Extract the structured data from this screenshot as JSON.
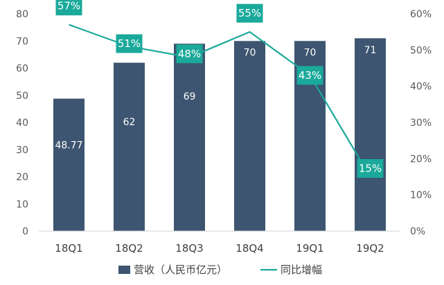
{
  "chart_data": {
    "type": "bar",
    "categories": [
      "18Q1",
      "18Q2",
      "18Q3",
      "18Q4",
      "19Q1",
      "19Q2"
    ],
    "series": [
      {
        "name": "营收（人民币亿元）",
        "kind": "bar",
        "axis": "left",
        "color": "#3d5570",
        "values": [
          48.77,
          62,
          69,
          70,
          70,
          71
        ],
        "labels": [
          "48.77",
          "62",
          "69",
          "70",
          "70",
          "71"
        ]
      },
      {
        "name": "同比增幅",
        "kind": "line",
        "axis": "right",
        "color": "#1aa99a",
        "values": [
          57,
          51,
          48,
          55,
          43,
          15
        ],
        "labels": [
          "57%",
          "51%",
          "48%",
          "55%",
          "43%",
          "15%"
        ]
      }
    ],
    "left_axis": {
      "ylim": [
        0,
        80
      ],
      "ticks": [
        0,
        10,
        20,
        30,
        40,
        50,
        60,
        70,
        80
      ],
      "tick_labels": [
        "0",
        "10",
        "20",
        "30",
        "40",
        "50",
        "60",
        "70",
        "80"
      ]
    },
    "right_axis": {
      "ylim": [
        0,
        60
      ],
      "ticks": [
        0,
        10,
        20,
        30,
        40,
        50,
        60
      ],
      "tick_labels": [
        "0%",
        "10%",
        "20%",
        "30%",
        "40%",
        "50%",
        "60%"
      ]
    },
    "grid": false,
    "legend_position": "bottom",
    "title": "",
    "xlabel": "",
    "ylabel": ""
  }
}
